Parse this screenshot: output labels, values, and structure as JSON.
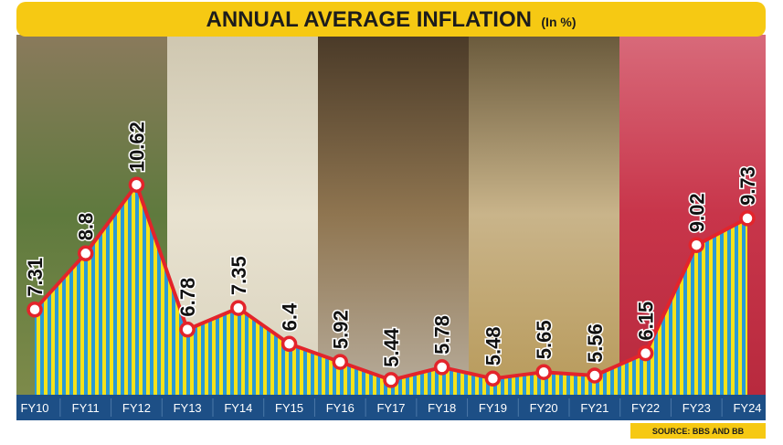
{
  "chart_data": {
    "type": "area-line",
    "title": "ANNUAL AVERAGE INFLATION",
    "unit": "(In %)",
    "source": "SOURCE: BBS AND BB",
    "categories": [
      "FY10",
      "FY11",
      "FY12",
      "FY13",
      "FY14",
      "FY15",
      "FY16",
      "FY17",
      "FY18",
      "FY19",
      "FY20",
      "FY21",
      "FY22",
      "FY23",
      "FY24"
    ],
    "values": [
      7.31,
      8.8,
      10.62,
      6.78,
      7.35,
      6.4,
      5.92,
      5.44,
      5.78,
      5.48,
      5.65,
      5.56,
      6.15,
      9.02,
      9.73
    ],
    "color": "#e3242b",
    "ylim": [
      5.05,
      14.6
    ]
  }
}
